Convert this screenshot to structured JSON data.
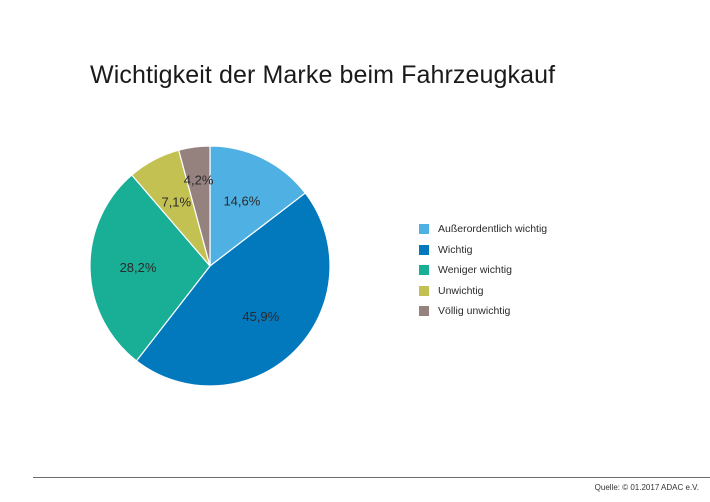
{
  "chart_data": {
    "type": "pie",
    "title": "Wichtigkeit der Marke beim Fahrzeugkauf",
    "slices": [
      {
        "label": "Außerordentlich wichtig",
        "value": 14.6,
        "display": "14,6%",
        "color": "#4fb0e3"
      },
      {
        "label": "Wichtig",
        "value": 45.9,
        "display": "45,9%",
        "color": "#0278bd"
      },
      {
        "label": "Weniger wichtig",
        "value": 28.2,
        "display": "28,2%",
        "color": "#19ae96"
      },
      {
        "label": "Unwichtig",
        "value": 7.1,
        "display": "7,1%",
        "color": "#c3c152"
      },
      {
        "label": "Völlig unwichtig",
        "value": 4.2,
        "display": "4,2%",
        "color": "#95817e"
      }
    ],
    "legend_position": "right"
  },
  "source": "Quelle: © 01.2017 ADAC e.V."
}
